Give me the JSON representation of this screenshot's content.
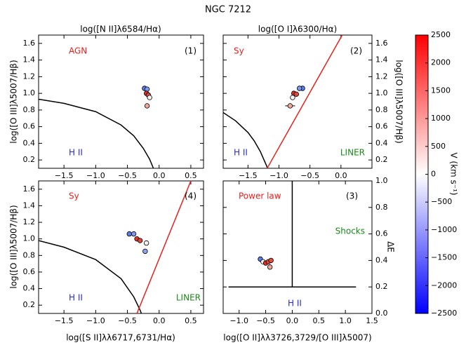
{
  "title": "NGC 7212",
  "chart_data": [
    {
      "type": "scatter",
      "xlabel": "log([N II]λ6584/Hα)",
      "ylabel": "log([O III]λ5007/Hβ)",
      "xlim": [
        -1.9,
        0.7
      ],
      "ylim": [
        0.1,
        1.7
      ],
      "xticks": [
        {
          "value": -1.5,
          "label": "−1.5"
        },
        {
          "value": -1.0,
          "label": "−1.0"
        },
        {
          "value": -0.5,
          "label": "−0.5"
        },
        {
          "value": 0.0,
          "label": "0.0"
        },
        0.5
      ],
      "yticks": [
        0.2,
        0.4,
        0.6,
        0.8,
        {
          "value": 1.0,
          "label": "1.0"
        },
        1.2,
        1.4,
        1.6
      ],
      "annotations": [
        "AGN",
        "(1)",
        "H II"
      ],
      "annotation_colors": [
        "#e8201c",
        "#000000",
        "#2a2acc"
      ],
      "lines": [
        {
          "color": "#000000",
          "x": [
            -1.9,
            -1.5,
            -1.0,
            -0.6,
            -0.4,
            -0.25,
            -0.15,
            -0.09
          ],
          "values": [
            0.93,
            0.88,
            0.78,
            0.62,
            0.49,
            0.34,
            0.21,
            0.1
          ]
        }
      ],
      "x": [
        -0.23,
        -0.19,
        -0.2,
        -0.17,
        -0.15,
        -0.19
      ],
      "values": [
        1.06,
        1.05,
        1.0,
        0.98,
        0.95,
        0.85
      ],
      "colors": [
        "#5b7ee8",
        "#7f9af0",
        "#e03028",
        "#d84a40",
        "#f7f2f2",
        "#f0a898"
      ],
      "xerr": [
        null,
        null,
        null,
        null,
        null,
        0.02
      ],
      "yerr": [
        null,
        null,
        null,
        null,
        null,
        0.03
      ]
    },
    {
      "type": "scatter",
      "xlabel": "log([O I]λ6300/Hα)",
      "ylabel": "log([O III]λ5007/Hβ)",
      "xlim": [
        -1.9,
        0.5
      ],
      "ylim": [
        0.1,
        1.7
      ],
      "xticks": [
        {
          "value": -1.5,
          "label": "−1.5"
        },
        {
          "value": -1.0,
          "label": "−1.0"
        },
        {
          "value": -0.5,
          "label": "−0.5"
        },
        {
          "value": 0.0,
          "label": "0.0"
        }
      ],
      "yticks": [
        0.2,
        0.4,
        0.6,
        0.8,
        {
          "value": 1.0,
          "label": "1.0"
        },
        1.2,
        1.4,
        1.6
      ],
      "annotations": [
        "Sy",
        "(2)",
        "H II",
        "LINER"
      ],
      "annotation_colors": [
        "#e8201c",
        "#000000",
        "#2a2acc",
        "#1a8a1a"
      ],
      "lines": [
        {
          "color": "#000000",
          "x": [
            -1.9,
            -1.7,
            -1.5,
            -1.4,
            -1.3,
            -1.2,
            -1.19
          ],
          "values": [
            0.77,
            0.67,
            0.53,
            0.43,
            0.3,
            0.13,
            0.11
          ]
        },
        {
          "color": "#e8201c",
          "x": [
            -1.19,
            0.02
          ],
          "values": [
            0.1,
            1.7
          ]
        }
      ],
      "x": [
        -0.62,
        -0.67,
        -0.76,
        -0.72,
        -0.78,
        -0.82
      ],
      "values": [
        1.06,
        1.06,
        1.0,
        0.99,
        0.95,
        0.85
      ],
      "colors": [
        "#5b7ee8",
        "#7f9af0",
        "#e03028",
        "#d84a40",
        "#f7f2f2",
        "#f0a898"
      ],
      "xerr": [
        null,
        null,
        null,
        null,
        null,
        0.08
      ],
      "yerr": [
        null,
        null,
        null,
        null,
        null,
        0.03
      ]
    },
    {
      "type": "scatter",
      "xlabel": "log([S II]λλ6717,6731/Hα)",
      "ylabel": "log([O III]λ5007/Hβ)",
      "xlim": [
        -1.9,
        0.7
      ],
      "ylim": [
        0.1,
        1.7
      ],
      "xticks": [
        {
          "value": -1.5,
          "label": "−1.5"
        },
        {
          "value": -1.0,
          "label": "−1.0"
        },
        {
          "value": -0.5,
          "label": "−0.5"
        },
        {
          "value": 0.0,
          "label": "0.0"
        },
        0.5
      ],
      "yticks": [
        0.2,
        0.4,
        0.6,
        0.8,
        {
          "value": 1.0,
          "label": "1.0"
        },
        1.2,
        1.4,
        1.6
      ],
      "annotations": [
        "Sy",
        "(4)",
        "H II",
        "LINER"
      ],
      "annotation_colors": [
        "#e8201c",
        "#000000",
        "#2a2acc",
        "#1a8a1a"
      ],
      "lines": [
        {
          "color": "#000000",
          "x": [
            -1.9,
            -1.5,
            -1.0,
            -0.6,
            -0.4,
            -0.3,
            -0.28
          ],
          "values": [
            0.98,
            0.9,
            0.75,
            0.52,
            0.3,
            0.14,
            0.1
          ]
        },
        {
          "color": "#e8201c",
          "x": [
            -0.35,
            0.5
          ],
          "values": [
            0.1,
            1.7
          ]
        }
      ],
      "x": [
        -0.47,
        -0.4,
        -0.35,
        -0.3,
        -0.2,
        -0.22
      ],
      "values": [
        1.06,
        1.06,
        1.0,
        0.98,
        0.95,
        0.85
      ],
      "colors": [
        "#5b7ee8",
        "#7f9af0",
        "#e03028",
        "#d84a40",
        "#f7f2f2",
        "#8fa4f0"
      ],
      "xerr": [
        null,
        null,
        null,
        null,
        null,
        0.02
      ],
      "yerr": [
        null,
        null,
        null,
        null,
        null,
        0.03
      ]
    },
    {
      "type": "scatter",
      "xlabel": "log([O II]λλ3726,3729/[O III]λ5007)",
      "ylabel": "ΔE",
      "xlim": [
        -1.3,
        1.5
      ],
      "ylim": [
        0.0,
        1.0
      ],
      "xticks": [
        {
          "value": -1.0,
          "label": "−1.0"
        },
        {
          "value": -0.5,
          "label": "−0.5"
        },
        {
          "value": 0.0,
          "label": "0.0"
        },
        0.5,
        {
          "value": 1.0,
          "label": "1.0"
        },
        1.5
      ],
      "yticks": [
        {
          "value": 0.0,
          "label": "0.0"
        },
        0.2,
        0.4,
        0.6,
        0.8,
        {
          "value": 1.0,
          "label": "1.0"
        }
      ],
      "annotations": [
        "Power law",
        "(3)",
        "Shocks",
        "H II"
      ],
      "annotation_colors": [
        "#e8201c",
        "#000000",
        "#1a8a1a",
        "#2a2acc"
      ],
      "lines": [
        {
          "color": "#000000",
          "x": [
            0.0,
            0.0
          ],
          "values": [
            0.2,
            1.0
          ]
        },
        {
          "color": "#000000",
          "x": [
            -1.2,
            1.2
          ],
          "values": [
            0.2,
            0.2
          ]
        }
      ],
      "x": [
        -0.6,
        -0.55,
        -0.5,
        -0.45,
        -0.4,
        -0.42
      ],
      "values": [
        0.41,
        0.39,
        0.38,
        0.39,
        0.4,
        0.35
      ],
      "colors": [
        "#5b7ee8",
        "#f7f2f2",
        "#e03028",
        "#d84a40",
        "#e05040",
        "#f0a898"
      ],
      "xerr": [
        null,
        null,
        null,
        null,
        null,
        null
      ],
      "yerr": [
        null,
        null,
        null,
        null,
        null,
        null
      ]
    },
    {
      "type": "colorbar",
      "label": "V (km s⁻¹)",
      "ylim": [
        -2500,
        2500
      ],
      "yticks": [
        {
          "value": -2500,
          "label": "−2500"
        },
        {
          "value": -2000,
          "label": "−2000"
        },
        {
          "value": -1500,
          "label": "−1500"
        },
        {
          "value": -1000,
          "label": "−1000"
        },
        {
          "value": -500,
          "label": "−500"
        },
        0,
        500,
        1000,
        1500,
        2000,
        2500
      ],
      "colors": [
        "#0000ff",
        "#ffffff",
        "#ff0000"
      ]
    }
  ]
}
